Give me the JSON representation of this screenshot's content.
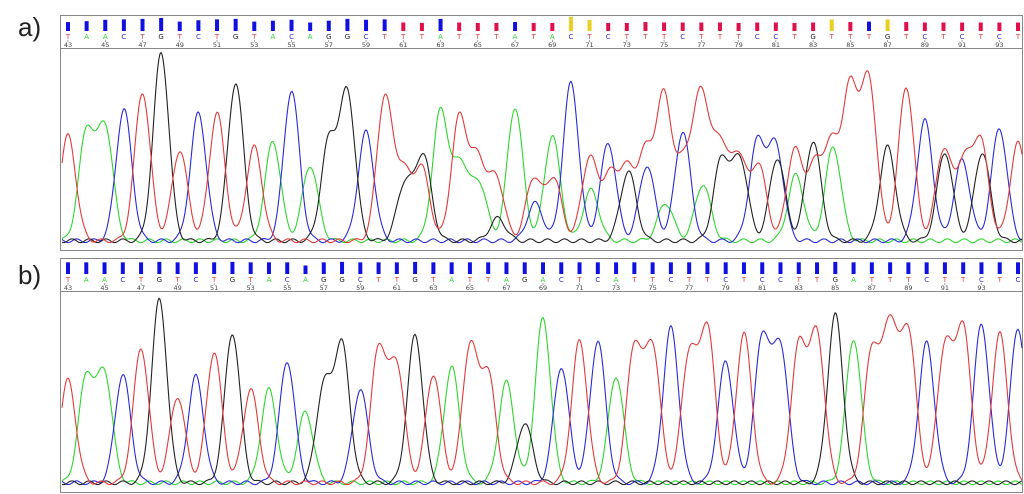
{
  "chart_data": [
    {
      "type": "chromatogram",
      "panel_label": "a)",
      "channel_colors": {
        "A": "#2fd62f",
        "C": "#2a2ad8",
        "G": "#222222",
        "T": "#e23a3a"
      },
      "qv_colors": {
        "high": "#1010e0",
        "low": "#e0104a",
        "mid": "#e8d020"
      },
      "position_labels": [
        "43",
        "45",
        "47",
        "49",
        "51",
        "53",
        "55",
        "57",
        "59",
        "61",
        "63",
        "65",
        "67",
        "69",
        "71",
        "73",
        "75",
        "77",
        "79",
        "81",
        "83",
        "85",
        "87",
        "89",
        "91",
        "93"
      ],
      "bases": [
        {
          "c": "T",
          "q": 0.55,
          "h": 0.56
        },
        {
          "c": "A",
          "q": 0.65,
          "h": 0.58
        },
        {
          "c": "A",
          "q": 0.8,
          "h": 0.6
        },
        {
          "c": "C",
          "q": 0.85,
          "h": 0.7
        },
        {
          "c": "T",
          "q": 0.9,
          "h": 0.79
        },
        {
          "c": "G",
          "q": 1.0,
          "h": 1.0
        },
        {
          "c": "T",
          "q": 0.6,
          "h": 0.48
        },
        {
          "c": "C",
          "q": 0.75,
          "h": 0.68
        },
        {
          "c": "T",
          "q": 0.85,
          "h": 0.68
        },
        {
          "c": "G",
          "q": 0.9,
          "h": 0.84
        },
        {
          "c": "T",
          "q": 0.6,
          "h": 0.5
        },
        {
          "c": "A",
          "q": 0.7,
          "h": 0.53
        },
        {
          "c": "C",
          "q": 0.8,
          "h": 0.8
        },
        {
          "c": "A",
          "q": 0.5,
          "h": 0.4
        },
        {
          "c": "G",
          "q": 0.7,
          "h": 0.52
        },
        {
          "c": "G",
          "q": 0.9,
          "h": 0.78
        },
        {
          "c": "C",
          "q": 0.8,
          "h": 0.58
        },
        {
          "c": "T",
          "q": 0.85,
          "h": 0.76
        },
        {
          "c": "T",
          "q": 0.5,
          "h": 0.35,
          "s": "G",
          "sh": 0.3,
          "p": "low"
        },
        {
          "c": "T",
          "q": 0.45,
          "h": 0.38,
          "s": "G",
          "sh": 0.45,
          "p": "low"
        },
        {
          "c": "A",
          "q": 0.9,
          "h": 0.69
        },
        {
          "c": "T",
          "q": 0.5,
          "h": 0.65,
          "s": "A",
          "sh": 0.4,
          "p": "low"
        },
        {
          "c": "T",
          "q": 0.45,
          "h": 0.42,
          "s": "A",
          "sh": 0.3,
          "p": "low"
        },
        {
          "c": "T",
          "q": 0.45,
          "h": 0.33,
          "s": "G",
          "sh": 0.12,
          "p": "low"
        },
        {
          "c": "A",
          "q": 0.55,
          "h": 0.71
        },
        {
          "c": "T",
          "q": 0.45,
          "h": 0.33,
          "s": "C",
          "sh": 0.2,
          "p": "low"
        },
        {
          "c": "A",
          "q": 0.45,
          "h": 0.56,
          "s": "T",
          "sh": 0.33,
          "p": "low"
        },
        {
          "c": "C",
          "q": 0.8,
          "h": 0.84,
          "p": "mid"
        },
        {
          "c": "T",
          "q": 0.45,
          "h": 0.44,
          "s": "A",
          "sh": 0.27,
          "p": "mid"
        },
        {
          "c": "C",
          "q": 0.45,
          "h": 0.52,
          "s": "T",
          "sh": 0.33,
          "p": "low"
        },
        {
          "c": "T",
          "q": 0.45,
          "h": 0.36,
          "s": "G",
          "sh": 0.37,
          "p": "low"
        },
        {
          "c": "T",
          "q": 0.55,
          "h": 0.45,
          "s": "C",
          "sh": 0.4,
          "p": "low"
        },
        {
          "c": "T",
          "q": 0.5,
          "h": 0.76,
          "s": "A",
          "sh": 0.2,
          "p": "low"
        },
        {
          "c": "C",
          "q": 0.5,
          "h": 0.58,
          "s": "T",
          "sh": 0.4,
          "p": "low"
        },
        {
          "c": "T",
          "q": 0.5,
          "h": 0.76,
          "s": "A",
          "sh": 0.3,
          "p": "low"
        },
        {
          "c": "T",
          "q": 0.5,
          "h": 0.5,
          "s": "G",
          "sh": 0.43,
          "p": "low"
        },
        {
          "c": "T",
          "q": 0.45,
          "h": 0.44,
          "s": "G",
          "sh": 0.43,
          "p": "low"
        },
        {
          "c": "C",
          "q": 0.5,
          "h": 0.52,
          "s": "T",
          "sh": 0.4,
          "p": "low"
        },
        {
          "c": "C",
          "q": 0.5,
          "h": 0.5,
          "s": "G",
          "sh": 0.44,
          "p": "low"
        },
        {
          "c": "T",
          "q": 0.45,
          "h": 0.48,
          "s": "A",
          "sh": 0.35,
          "p": "low"
        },
        {
          "c": "G",
          "q": 0.5,
          "h": 0.53,
          "s": "T",
          "sh": 0.38,
          "p": "low"
        },
        {
          "c": "T",
          "q": 0.5,
          "h": 0.48,
          "s": "A",
          "sh": 0.5,
          "p": "mid"
        },
        {
          "c": "T",
          "q": 0.55,
          "h": 0.79,
          "p": "low"
        },
        {
          "c": "T",
          "q": 0.6,
          "h": 0.84
        },
        {
          "c": "G",
          "q": 0.5,
          "h": 0.5,
          "p": "mid"
        },
        {
          "c": "T",
          "q": 0.55,
          "h": 0.82,
          "p": "low"
        },
        {
          "c": "C",
          "q": 0.5,
          "h": 0.64,
          "p": "low"
        },
        {
          "c": "T",
          "q": 0.5,
          "h": 0.48,
          "s": "G",
          "sh": 0.47,
          "p": "low"
        },
        {
          "c": "C",
          "q": 0.5,
          "h": 0.43,
          "s": "T",
          "sh": 0.4,
          "p": "low"
        },
        {
          "c": "T",
          "q": 0.5,
          "h": 0.52,
          "s": "G",
          "sh": 0.47,
          "p": "low"
        },
        {
          "c": "C",
          "q": 0.5,
          "h": 0.6,
          "p": "low"
        },
        {
          "c": "T",
          "q": 0.5,
          "h": 0.52,
          "p": "low"
        }
      ]
    },
    {
      "type": "chromatogram",
      "panel_label": "b)",
      "channel_colors": {
        "A": "#2fd62f",
        "C": "#2a2ad8",
        "G": "#222222",
        "T": "#e23a3a"
      },
      "qv_colors": {
        "high": "#1010e0",
        "low": "#e0104a",
        "mid": "#e8d020"
      },
      "position_labels": [
        "43",
        "45",
        "47",
        "49",
        "51",
        "53",
        "55",
        "57",
        "59",
        "61",
        "63",
        "65",
        "67",
        "69",
        "71",
        "73",
        "75",
        "77",
        "79",
        "81",
        "83",
        "85",
        "87",
        "89",
        "91",
        "93"
      ],
      "bases": [
        {
          "c": "T",
          "q": 0.85,
          "h": 0.55
        },
        {
          "c": "A",
          "q": 0.85,
          "h": 0.56
        },
        {
          "c": "A",
          "q": 0.85,
          "h": 0.58
        },
        {
          "c": "C",
          "q": 0.85,
          "h": 0.58
        },
        {
          "c": "T",
          "q": 0.85,
          "h": 0.72
        },
        {
          "c": "G",
          "q": 0.9,
          "h": 0.98
        },
        {
          "c": "T",
          "q": 0.85,
          "h": 0.46
        },
        {
          "c": "C",
          "q": 0.85,
          "h": 0.57
        },
        {
          "c": "T",
          "q": 0.85,
          "h": 0.7
        },
        {
          "c": "G",
          "q": 0.9,
          "h": 0.8
        },
        {
          "c": "T",
          "q": 0.85,
          "h": 0.5
        },
        {
          "c": "A",
          "q": 0.85,
          "h": 0.5
        },
        {
          "c": "C",
          "q": 0.85,
          "h": 0.65
        },
        {
          "c": "A",
          "q": 0.5,
          "h": 0.38
        },
        {
          "c": "G",
          "q": 0.85,
          "h": 0.51
        },
        {
          "c": "G",
          "q": 0.9,
          "h": 0.73
        },
        {
          "c": "C",
          "q": 0.85,
          "h": 0.5
        },
        {
          "c": "T",
          "q": 0.85,
          "h": 0.71
        },
        {
          "c": "T",
          "q": 0.85,
          "h": 0.62
        },
        {
          "c": "G",
          "q": 0.9,
          "h": 0.79
        },
        {
          "c": "T",
          "q": 0.85,
          "h": 0.58
        },
        {
          "c": "A",
          "q": 0.85,
          "h": 0.62
        },
        {
          "c": "T",
          "q": 0.85,
          "h": 0.72
        },
        {
          "c": "T",
          "q": 0.85,
          "h": 0.57
        },
        {
          "c": "A",
          "q": 0.85,
          "h": 0.54
        },
        {
          "c": "G",
          "q": 0.85,
          "h": 0.32
        },
        {
          "c": "A",
          "q": 0.85,
          "h": 0.88
        },
        {
          "c": "C",
          "q": 0.85,
          "h": 0.62
        },
        {
          "c": "T",
          "q": 0.85,
          "h": 0.76
        },
        {
          "c": "C",
          "q": 0.85,
          "h": 0.76
        },
        {
          "c": "A",
          "q": 0.85,
          "h": 0.57
        },
        {
          "c": "T",
          "q": 0.85,
          "h": 0.72
        },
        {
          "c": "T",
          "q": 0.85,
          "h": 0.72
        },
        {
          "c": "C",
          "q": 0.85,
          "h": 0.83
        },
        {
          "c": "T",
          "q": 0.85,
          "h": 0.68
        },
        {
          "c": "T",
          "q": 0.85,
          "h": 0.82
        },
        {
          "c": "C",
          "q": 0.85,
          "h": 0.65
        },
        {
          "c": "T",
          "q": 0.85,
          "h": 0.8
        },
        {
          "c": "C",
          "q": 0.85,
          "h": 0.77
        },
        {
          "c": "C",
          "q": 0.85,
          "h": 0.72
        },
        {
          "c": "T",
          "q": 0.85,
          "h": 0.72
        },
        {
          "c": "T",
          "q": 0.85,
          "h": 0.78
        },
        {
          "c": "G",
          "q": 0.9,
          "h": 0.9
        },
        {
          "c": "A",
          "q": 0.85,
          "h": 0.77
        },
        {
          "c": "T",
          "q": 0.85,
          "h": 0.7
        },
        {
          "c": "T",
          "q": 0.85,
          "h": 0.82
        },
        {
          "c": "T",
          "q": 0.85,
          "h": 0.8
        },
        {
          "c": "C",
          "q": 0.85,
          "h": 0.75
        },
        {
          "c": "T",
          "q": 0.85,
          "h": 0.72
        },
        {
          "c": "T",
          "q": 0.85,
          "h": 0.82
        },
        {
          "c": "C",
          "q": 0.85,
          "h": 0.85
        },
        {
          "c": "T",
          "q": 0.85,
          "h": 0.8
        },
        {
          "c": "C",
          "q": 0.85,
          "h": 0.83
        }
      ]
    }
  ]
}
